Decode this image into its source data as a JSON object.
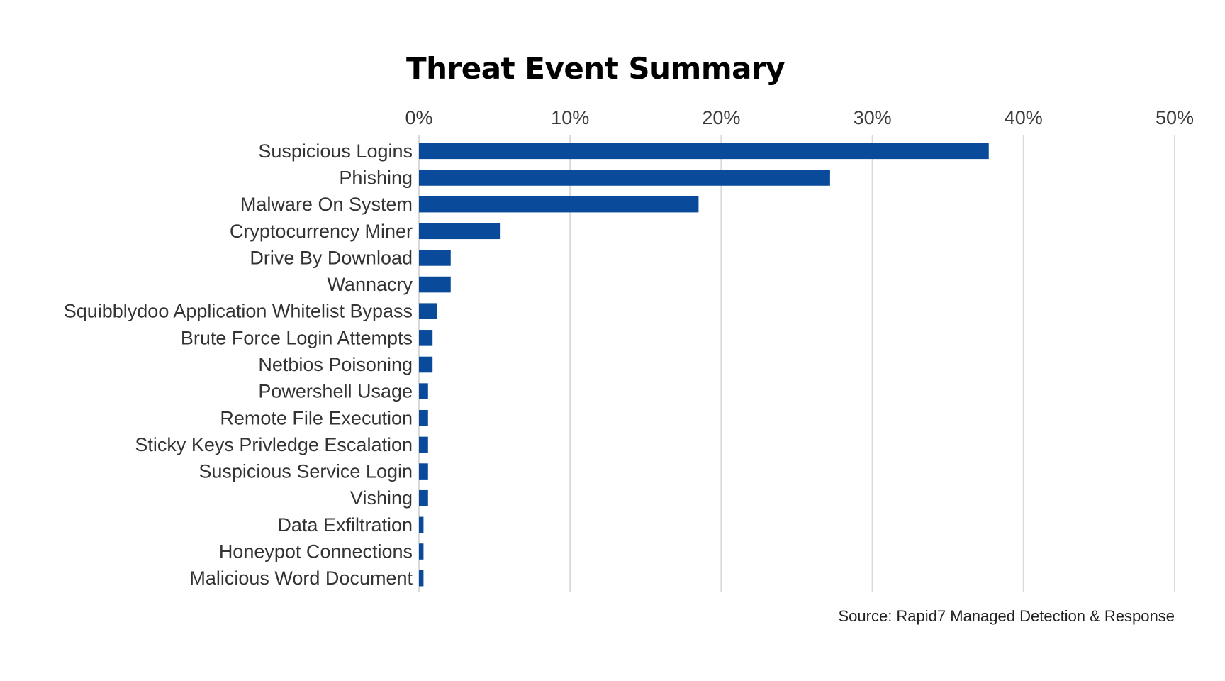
{
  "chart_data": {
    "type": "bar",
    "orientation": "horizontal",
    "title": "Threat Event Summary",
    "xlabel": "",
    "ylabel": "",
    "xlim": [
      0,
      50
    ],
    "x_ticks": [
      0,
      10,
      20,
      30,
      40,
      50
    ],
    "x_tick_labels": [
      "0%",
      "10%",
      "20%",
      "30%",
      "40%",
      "50%"
    ],
    "x_axis_position": "top",
    "grid": "vertical",
    "categories": [
      "Suspicious Logins",
      "Phishing",
      "Malware On System",
      "Cryptocurrency Miner",
      "Drive By Download",
      "Wannacry",
      "Squibblydoo Application Whitelist Bypass",
      "Brute Force Login Attempts",
      "Netbios Poisoning",
      "Powershell Usage",
      "Remote File Execution",
      "Sticky Keys Privledge Escalation",
      "Suspicious Service Login",
      "Vishing",
      "Data Exfiltration",
      "Honeypot Connections",
      "Malicious Word Document"
    ],
    "values": [
      37.7,
      27.2,
      18.5,
      5.4,
      2.1,
      2.1,
      1.2,
      0.9,
      0.9,
      0.6,
      0.6,
      0.6,
      0.6,
      0.6,
      0.3,
      0.3,
      0.3
    ],
    "unit": "%",
    "bar_color": "#0a4a9a",
    "grid_color": "#d9d9d9",
    "source": "Source: Rapid7 Managed Detection & Response"
  }
}
